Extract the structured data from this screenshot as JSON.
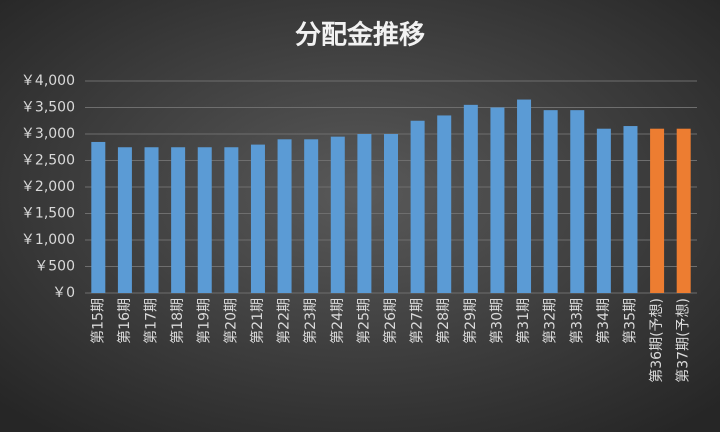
{
  "chart_data": {
    "type": "bar",
    "title": "分配金推移",
    "categories": [
      "第15期",
      "第16期",
      "第17期",
      "第18期",
      "第19期",
      "第20期",
      "第21期",
      "第22期",
      "第23期",
      "第24期",
      "第25期",
      "第26期",
      "第27期",
      "第28期",
      "第29期",
      "第30期",
      "第31期",
      "第32期",
      "第33期",
      "第34期",
      "第35期",
      "第36期(予想)",
      "第37期(予想)"
    ],
    "values": [
      2850,
      2750,
      2750,
      2750,
      2750,
      2750,
      2800,
      2900,
      2900,
      2950,
      3000,
      3000,
      3250,
      3350,
      3550,
      3500,
      3650,
      3450,
      3450,
      3100,
      3150,
      3100,
      3100
    ],
    "colors": [
      "#5b9bd5",
      "#5b9bd5",
      "#5b9bd5",
      "#5b9bd5",
      "#5b9bd5",
      "#5b9bd5",
      "#5b9bd5",
      "#5b9bd5",
      "#5b9bd5",
      "#5b9bd5",
      "#5b9bd5",
      "#5b9bd5",
      "#5b9bd5",
      "#5b9bd5",
      "#5b9bd5",
      "#5b9bd5",
      "#5b9bd5",
      "#5b9bd5",
      "#5b9bd5",
      "#5b9bd5",
      "#5b9bd5",
      "#ed7d31",
      "#ed7d31"
    ],
    "ylim": [
      0,
      4000
    ],
    "yticks": [
      {
        "value": 0,
        "label": "￥0"
      },
      {
        "value": 500,
        "label": "￥500"
      },
      {
        "value": 1000,
        "label": "￥1,000"
      },
      {
        "value": 1500,
        "label": "￥1,500"
      },
      {
        "value": 2000,
        "label": "￥2,000"
      },
      {
        "value": 2500,
        "label": "￥2,500"
      },
      {
        "value": 3000,
        "label": "￥3,000"
      },
      {
        "value": 3500,
        "label": "￥3,500"
      },
      {
        "value": 4000,
        "label": "￥4,000"
      }
    ],
    "grid": true
  }
}
